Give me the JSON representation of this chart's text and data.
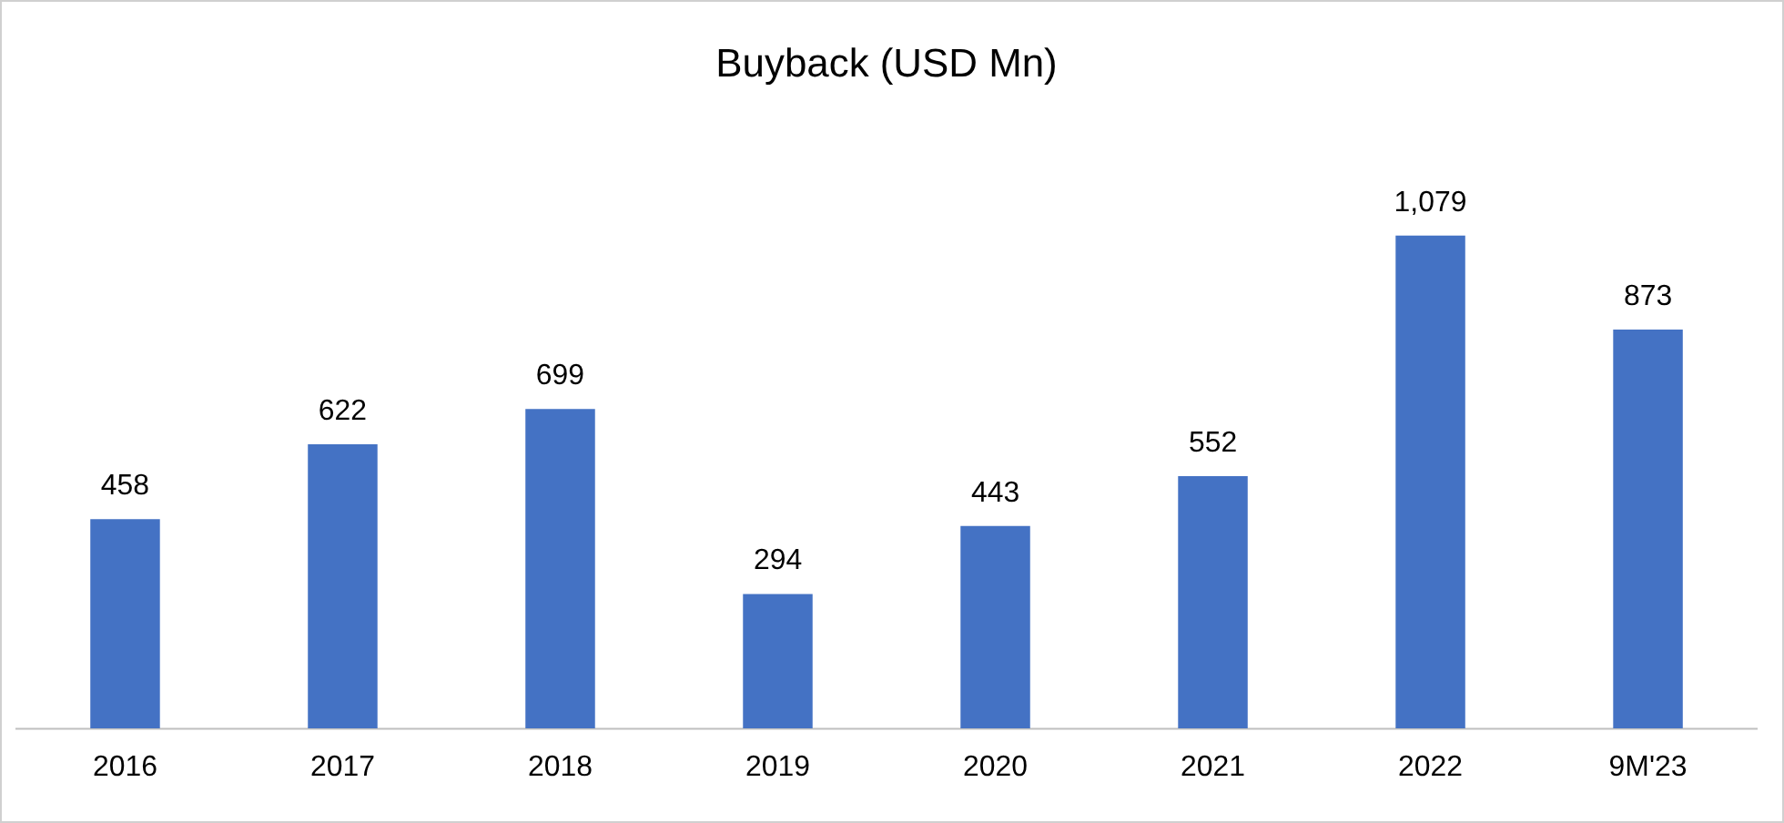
{
  "chart_data": {
    "type": "bar",
    "title": "Buyback (USD Mn)",
    "categories": [
      "2016",
      "2017",
      "2018",
      "2019",
      "2020",
      "2021",
      "2022",
      "9M'23"
    ],
    "values": [
      458,
      622,
      699,
      294,
      443,
      552,
      1079,
      873
    ],
    "value_labels": [
      "458",
      "622",
      "699",
      "294",
      "443",
      "552",
      "1,079",
      "873"
    ],
    "color": "#4472c4"
  }
}
